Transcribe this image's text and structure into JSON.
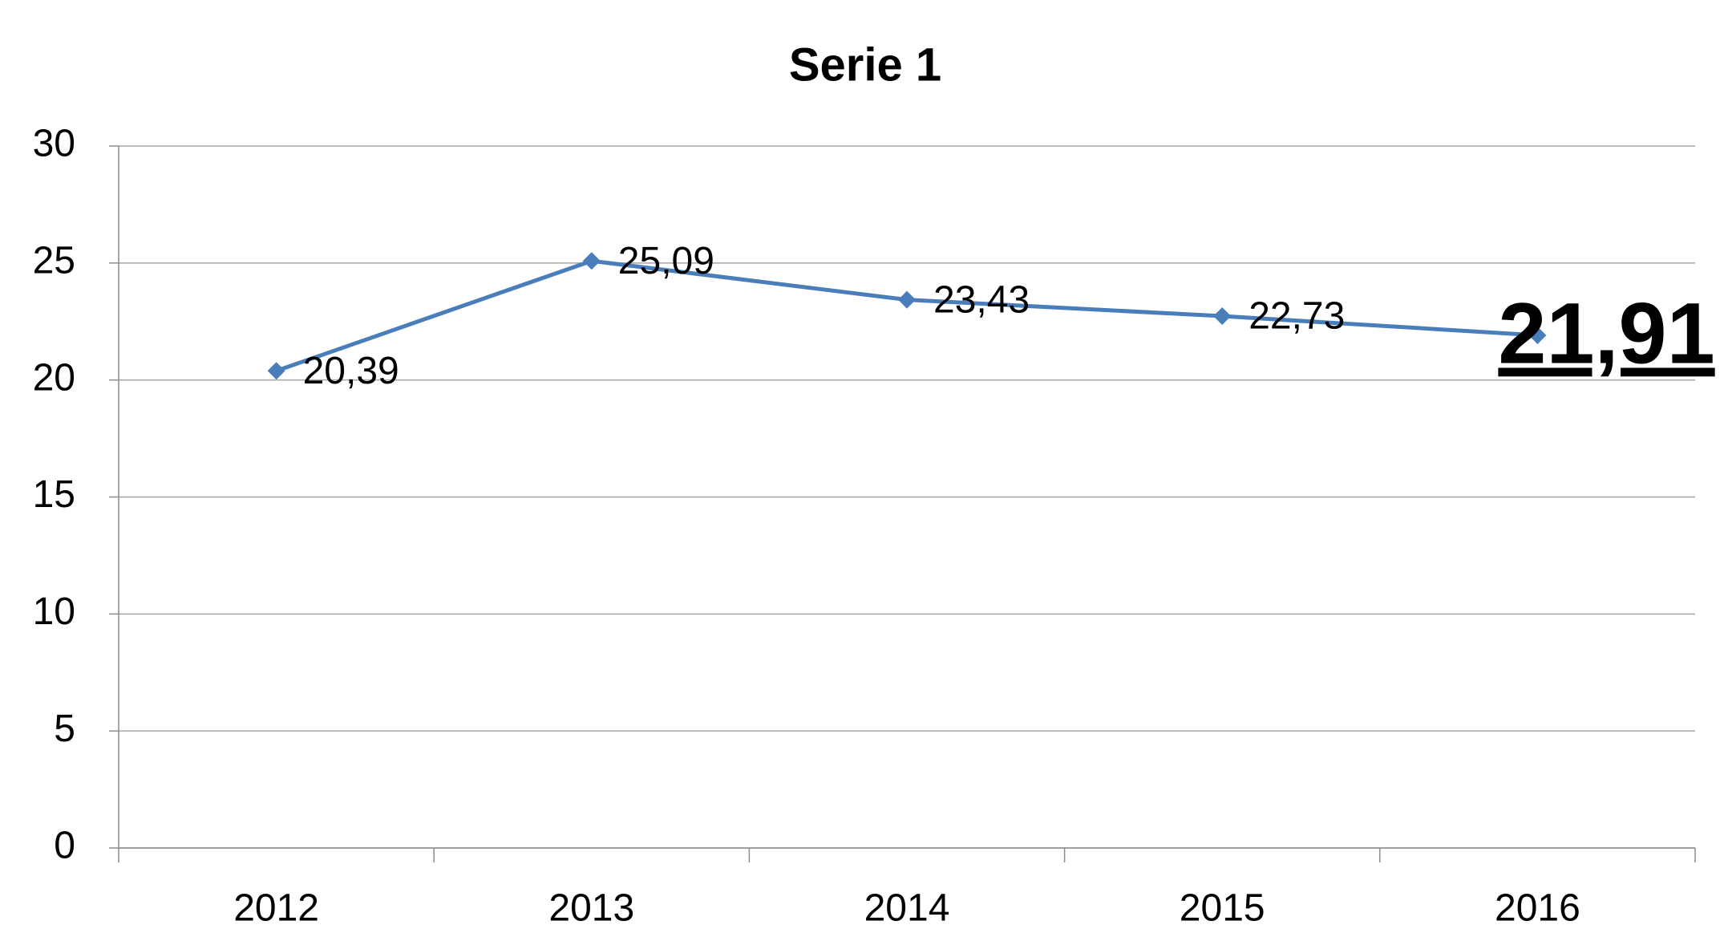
{
  "chart_data": {
    "type": "line",
    "title": "Serie 1",
    "categories": [
      "2012",
      "2013",
      "2014",
      "2015",
      "2016"
    ],
    "series": [
      {
        "name": "Serie 1",
        "color": "#4a7ebb",
        "values": [
          20.39,
          25.09,
          23.43,
          22.73,
          21.91
        ],
        "value_labels": [
          "20,39",
          "25,09",
          "23,43",
          "22,73",
          "21,91"
        ]
      }
    ],
    "ylim": [
      0,
      30
    ],
    "yticks": [
      0,
      5,
      10,
      15,
      20,
      25,
      30
    ],
    "grid": true
  }
}
